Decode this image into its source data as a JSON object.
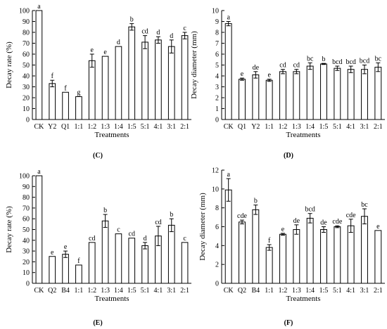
{
  "chart_data": [
    {
      "type": "bar",
      "panel": "(C)",
      "xlabel": "Treatments",
      "ylabel": "Decay rate (%)",
      "ylim": [
        0,
        100
      ],
      "yticks": [
        0,
        10,
        20,
        30,
        40,
        50,
        60,
        70,
        80,
        90,
        100
      ],
      "grid": false,
      "categories": [
        "CK",
        "Y2",
        "Q1",
        "1:1",
        "1:2",
        "1:3",
        "1:4",
        "1:5",
        "5:1",
        "4:1",
        "3:1",
        "2:1"
      ],
      "values": [
        100,
        33,
        25,
        21,
        54,
        58,
        67,
        85,
        71,
        73,
        67,
        77
      ],
      "errors": [
        0,
        3,
        0,
        0,
        6,
        0,
        0,
        3,
        6,
        3,
        6,
        3
      ],
      "letters": [
        "a",
        "f",
        "f",
        "g",
        "e",
        "e",
        "d",
        "b",
        "cd",
        "d",
        "d",
        "c"
      ]
    },
    {
      "type": "bar",
      "panel": "(D)",
      "xlabel": "Treatments",
      "ylabel": "Decay diameter (mm)",
      "ylim": [
        0,
        10
      ],
      "yticks": [
        0,
        1,
        2,
        3,
        4,
        5,
        6,
        7,
        8,
        9,
        10
      ],
      "grid": false,
      "categories": [
        "CK",
        "Q1",
        "Y2",
        "1:1",
        "1:2",
        "1:3",
        "1:4",
        "1:5",
        "5:1",
        "4:1",
        "3:1",
        "2:1"
      ],
      "values": [
        8.8,
        3.7,
        4.1,
        3.6,
        4.4,
        4.4,
        4.9,
        5.1,
        4.7,
        4.6,
        4.6,
        4.8
      ],
      "errors": [
        0.2,
        0.1,
        0.3,
        0.1,
        0.2,
        0.2,
        0.3,
        0.05,
        0.2,
        0.3,
        0.4,
        0.4
      ],
      "letters": [
        "a",
        "e",
        "de",
        "e",
        "cd",
        "cd",
        "bc",
        "b",
        "bcd",
        "bcd",
        "bcd",
        "bc"
      ]
    },
    {
      "type": "bar",
      "panel": "(E)",
      "xlabel": "Treatments",
      "ylabel": "Decay rate (%)",
      "ylim": [
        0,
        100
      ],
      "yticks": [
        0,
        10,
        20,
        30,
        40,
        50,
        60,
        70,
        80,
        90,
        100
      ],
      "grid": false,
      "categories": [
        "CK",
        "Q2",
        "B4",
        "1:1",
        "1:2",
        "1:3",
        "1:4",
        "1:5",
        "5:1",
        "4:1",
        "3:1",
        "2:1"
      ],
      "values": [
        100,
        25,
        27,
        17,
        38,
        58,
        46,
        42,
        35,
        44,
        54,
        38
      ],
      "errors": [
        0,
        0,
        3,
        0,
        0,
        6,
        0,
        0,
        3,
        9,
        6,
        0
      ],
      "letters": [
        "a",
        "e",
        "e",
        "f",
        "cd",
        "b",
        "c",
        "cd",
        "d",
        "cd",
        "b",
        "c"
      ]
    },
    {
      "type": "bar",
      "panel": "(F)",
      "xlabel": "Treatments",
      "ylabel": "Decay diameter (mm)",
      "ylim": [
        0,
        12
      ],
      "yticks": [
        0,
        2,
        4,
        6,
        8,
        10,
        12
      ],
      "grid": false,
      "categories": [
        "CK",
        "Q2",
        "B4",
        "1:1",
        "1:2",
        "1:3",
        "1:4",
        "1:5",
        "5:1",
        "4:1",
        "3:1",
        "2:1"
      ],
      "values": [
        9.9,
        6.5,
        7.8,
        3.8,
        5.2,
        5.7,
        6.9,
        5.7,
        6.0,
        6.1,
        7.1,
        5.6
      ],
      "errors": [
        1.2,
        0.2,
        0.5,
        0.3,
        0.1,
        0.5,
        0.5,
        0.3,
        0.1,
        0.7,
        0.8,
        0.0
      ],
      "letters": [
        "a",
        "cde",
        "b",
        "f",
        "e",
        "de",
        "bcd",
        "de",
        "cde",
        "cde",
        "bc",
        "e"
      ]
    }
  ]
}
